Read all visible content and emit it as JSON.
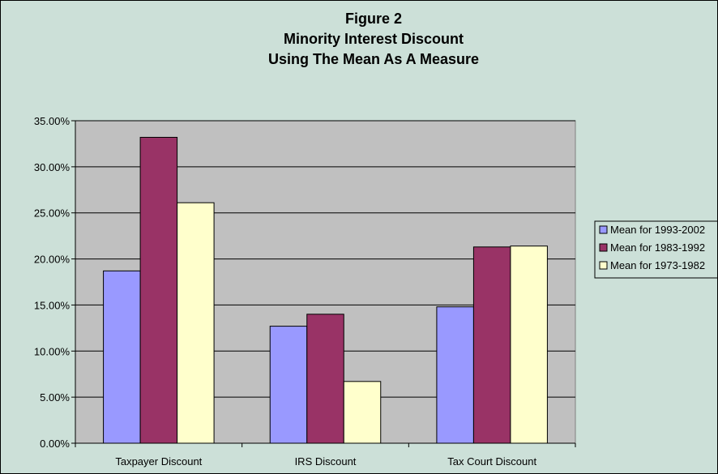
{
  "chart_data": {
    "type": "bar",
    "title": [
      "Figure 2",
      "Minority Interest Discount",
      "Using The Mean As A Measure"
    ],
    "categories": [
      "Taxpayer Discount",
      "IRS Discount",
      "Tax Court Discount"
    ],
    "series": [
      {
        "name": "Mean for 1993-2002",
        "values": [
          18.7,
          12.7,
          14.8
        ],
        "color": "#9999ff"
      },
      {
        "name": "Mean for 1983-1992",
        "values": [
          33.2,
          14.0,
          21.3
        ],
        "color": "#993366"
      },
      {
        "name": "Mean for 1973-1982",
        "values": [
          26.1,
          6.7,
          21.4
        ],
        "color": "#ffffcc"
      }
    ],
    "ylim": [
      0,
      35
    ],
    "ytick_step": 5,
    "yticks": [
      "0.00%",
      "5.00%",
      "10.00%",
      "15.00%",
      "20.00%",
      "25.00%",
      "30.00%",
      "35.00%"
    ],
    "grid": true,
    "legend_position": "right",
    "plot_background": "#c0c0c0",
    "chart_background": "#cce0d8"
  }
}
